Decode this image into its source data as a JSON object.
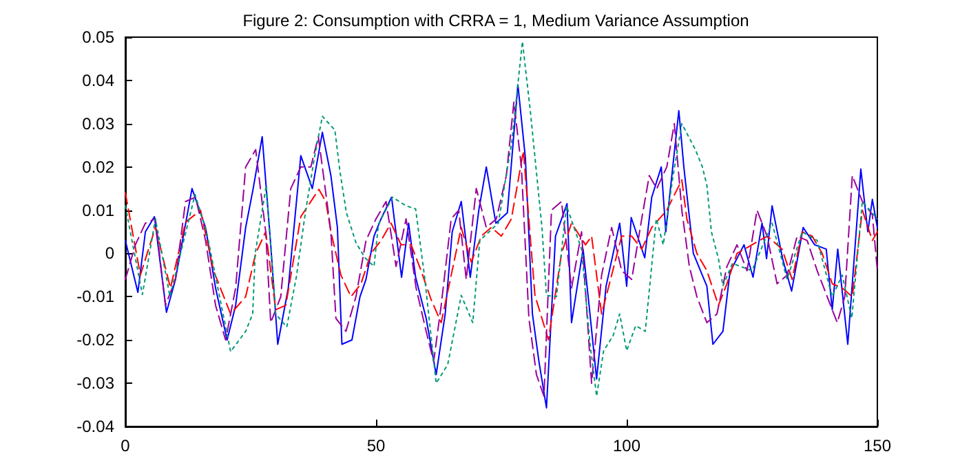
{
  "chart_data": {
    "type": "line",
    "title": "Figure 2: Consumption with CRRA = 1, Medium Variance Assumption",
    "xlim": [
      0,
      150
    ],
    "xticks": [
      0,
      50,
      100,
      150
    ],
    "ylim": [
      -0.04,
      0.05
    ],
    "yticks": [
      -0.04,
      -0.03,
      -0.02,
      -0.01,
      0,
      0.01,
      0.02,
      0.03,
      0.04,
      0.05
    ],
    "grid": false,
    "marker": "none",
    "series": [
      {
        "color": "#0000ff",
        "line_style": "solid",
        "x": [
          0,
          2.5,
          4,
          5.8,
          8.2,
          10,
          13.3,
          16,
          18,
          20.3,
          22,
          24,
          25.5,
          27.3,
          29,
          30.4,
          32.5,
          35,
          37.3,
          39.3,
          41,
          42.3,
          43.2,
          45.2,
          46.8,
          48,
          49.6,
          51,
          53.1,
          55.1,
          56.5,
          57.9,
          60,
          62,
          63.8,
          65.2,
          67,
          68.8,
          70.5,
          72,
          73.9,
          76.2,
          78.3,
          79.8,
          81.2,
          82.5,
          84,
          85.8,
          88.1,
          89,
          91.3,
          92.5,
          94,
          95.9,
          98.6,
          100,
          100.9,
          103.6,
          105,
          106.9,
          107.8,
          110.4,
          111.4,
          113.3,
          116,
          117.2,
          119.2,
          120.6,
          123.4,
          125.2,
          127,
          127.9,
          129,
          131.1,
          132.9,
          135.2,
          137.5,
          139.8,
          141,
          142.1,
          144.1,
          146.7,
          148.1,
          149,
          150
        ],
        "values": [
          0.003,
          -0.009,
          0.005,
          0.0085,
          -0.0136,
          -0.006,
          0.015,
          0.006,
          -0.008,
          -0.02,
          -0.012,
          0.006,
          0.015,
          0.027,
          0.002,
          -0.021,
          -0.008,
          0.0226,
          0.015,
          0.028,
          0.018,
          0.006,
          -0.021,
          -0.02,
          -0.01,
          -0.006,
          0.004,
          0.008,
          0.013,
          -0.0055,
          0.007,
          -0.0055,
          -0.015,
          -0.028,
          -0.014,
          0.005,
          0.012,
          -0.0055,
          0.01,
          0.02,
          0.007,
          0.0094,
          0.039,
          0.022,
          -0.014,
          -0.025,
          -0.0357,
          0.004,
          0.0115,
          -0.016,
          0.001,
          -0.012,
          -0.029,
          -0.0075,
          0.007,
          -0.0076,
          0.0083,
          -0.001,
          0.013,
          0.02,
          0.005,
          0.033,
          0.02,
          0,
          -0.0076,
          -0.021,
          -0.018,
          -0.0043,
          0.002,
          -0.0055,
          0.007,
          -0.0012,
          0.011,
          -0.0012,
          -0.0087,
          0.006,
          0.002,
          0.001,
          -0.013,
          0.001,
          -0.021,
          0.0195,
          0.005,
          0.0125,
          0.006
        ]
      },
      {
        "color": "#ff0000",
        "line_style": "dashed",
        "x": [
          0,
          3,
          6,
          9,
          12,
          15,
          17.6,
          21,
          24,
          26,
          28,
          30,
          32,
          35,
          38.6,
          40,
          41,
          43,
          45,
          47,
          49,
          51,
          53,
          55,
          57,
          59,
          61,
          63,
          65,
          67,
          69,
          71,
          73,
          75,
          77,
          79.4,
          81.7,
          84.4,
          87,
          89,
          91.8,
          93,
          95,
          97,
          99,
          101,
          103,
          105,
          108,
          111,
          112,
          114,
          116,
          118.3,
          120,
          122,
          125,
          128,
          131,
          133,
          135,
          137,
          139,
          141,
          143,
          145,
          147,
          149,
          150
        ],
        "values": [
          0.014,
          -0.005,
          0.006,
          -0.008,
          0.0072,
          0.01,
          -0.004,
          -0.014,
          -0.01,
          0,
          0.005,
          -0.013,
          -0.012,
          0.0085,
          0.0148,
          0.012,
          0.005,
          -0.005,
          -0.01,
          -0.007,
          0,
          0.003,
          0.007,
          0.002,
          0.002,
          -0.004,
          -0.0107,
          -0.016,
          -0.005,
          0.006,
          -0.002,
          0.004,
          0.006,
          0.004,
          0.008,
          0.0237,
          -0.0097,
          -0.02,
          0,
          0.007,
          0.002,
          0.004,
          -0.014,
          -0.005,
          0.004,
          0.004,
          0.001,
          0.006,
          0.01,
          0.017,
          0.008,
          0,
          -0.004,
          -0.012,
          -0.007,
          0,
          0.002,
          0.004,
          0.001,
          -0.006,
          0.005,
          0.004,
          0,
          -0.007,
          -0.008,
          -0.01,
          0.01,
          0.003,
          0.005
        ]
      },
      {
        "color": "#990099",
        "line_style": "dashed",
        "x": [
          0,
          2,
          4,
          6,
          8,
          10,
          12,
          14,
          16,
          18,
          20,
          22,
          24,
          26,
          28,
          29,
          31,
          33,
          35,
          37,
          38.5,
          41,
          42,
          44,
          46,
          48,
          50,
          52,
          54,
          56,
          58,
          60,
          61.5,
          63,
          65,
          66.5,
          68,
          70,
          72,
          74,
          76,
          77.5,
          79,
          80.5,
          82,
          83.5,
          85,
          87,
          89,
          91,
          93,
          95,
          97,
          99,
          101,
          103,
          104.5,
          106,
          108,
          109.5,
          111,
          112.5,
          114,
          116,
          118,
          120,
          122,
          124,
          126,
          128,
          130,
          132,
          134,
          136,
          138,
          140,
          142,
          143.5,
          145,
          147,
          149,
          150
        ],
        "values": [
          -0.006,
          0.002,
          0.007,
          0.008,
          -0.012,
          -0.006,
          0.012,
          0.013,
          0.003,
          -0.012,
          -0.02,
          -0.008,
          0.02,
          0.024,
          0.005,
          -0.016,
          -0.01,
          0.015,
          0.02,
          0.02,
          0.027,
          0.005,
          -0.015,
          -0.018,
          -0.01,
          0.003,
          0.008,
          0.012,
          -0.003,
          0.008,
          -0.008,
          -0.018,
          -0.025,
          -0.012,
          0.008,
          0.01,
          -0.006,
          0.015,
          0.006,
          0.008,
          0.018,
          0.035,
          0.02,
          -0.015,
          -0.028,
          -0.033,
          0.01,
          0.012,
          -0.008,
          0.005,
          -0.03,
          -0.005,
          0.006,
          -0.004,
          -0.006,
          0.008,
          0.018,
          0.015,
          0.02,
          0.03,
          0.01,
          -0.003,
          -0.01,
          -0.016,
          -0.014,
          -0.003,
          0.002,
          -0.004,
          0.01,
          0.004,
          -0.007,
          -0.005,
          0.004,
          0.003,
          -0.004,
          -0.01,
          -0.016,
          -0.01,
          0.018,
          0.012,
          0.009,
          -0.004
        ]
      },
      {
        "color": "#009977",
        "line_style": "dotted",
        "x": [
          0,
          3.4,
          6,
          8.9,
          13.9,
          16.2,
          21,
          24,
          25.4,
          25.9,
          28.1,
          30,
          32.2,
          34.1,
          35.9,
          37.7,
          39.3,
          41.8,
          42.8,
          44.1,
          46,
          47.8,
          49.6,
          50.5,
          53.3,
          56,
          57.9,
          59.7,
          62,
          64.3,
          67,
          69.3,
          70.7,
          74.4,
          77.1,
          79.2,
          80.8,
          83.1,
          84,
          86,
          88,
          91,
          92.7,
          94,
          95.4,
          97.3,
          98.6,
          100,
          101.8,
          103.7,
          104.6,
          105.9,
          107.3,
          109.1,
          111,
          113.7,
          115.1,
          116,
          116.9,
          118.3,
          119.2,
          121.1,
          125,
          129,
          132,
          135,
          138,
          141,
          143,
          144.9,
          147,
          150
        ],
        "values": [
          0.011,
          -0.0095,
          0.008,
          -0.01,
          0.0136,
          0.005,
          -0.0227,
          -0.018,
          -0.014,
          0,
          0.0157,
          -0.014,
          -0.017,
          -0.0055,
          0.0094,
          0.022,
          0.0317,
          0.0285,
          0.019,
          0.0094,
          0.0025,
          -0.001,
          -0.003,
          0.0068,
          0.013,
          0.011,
          0.0103,
          -0.0055,
          -0.03,
          -0.0257,
          -0.0097,
          -0.016,
          0.003,
          0.007,
          0.026,
          0.049,
          0.0327,
          0.006,
          -0.0097,
          -0.01,
          0.011,
          0.001,
          -0.021,
          -0.033,
          -0.0225,
          -0.019,
          -0.014,
          -0.0225,
          -0.0167,
          -0.018,
          -0.0075,
          0.008,
          0.002,
          0.0168,
          0.03,
          0.024,
          0.02,
          0.0157,
          0.005,
          -0.0012,
          -0.0075,
          -0.0023,
          -0.004,
          0.007,
          -0.006,
          0.005,
          0.003,
          -0.01,
          -0.005,
          -0.015,
          0.012,
          0.008
        ]
      }
    ]
  }
}
